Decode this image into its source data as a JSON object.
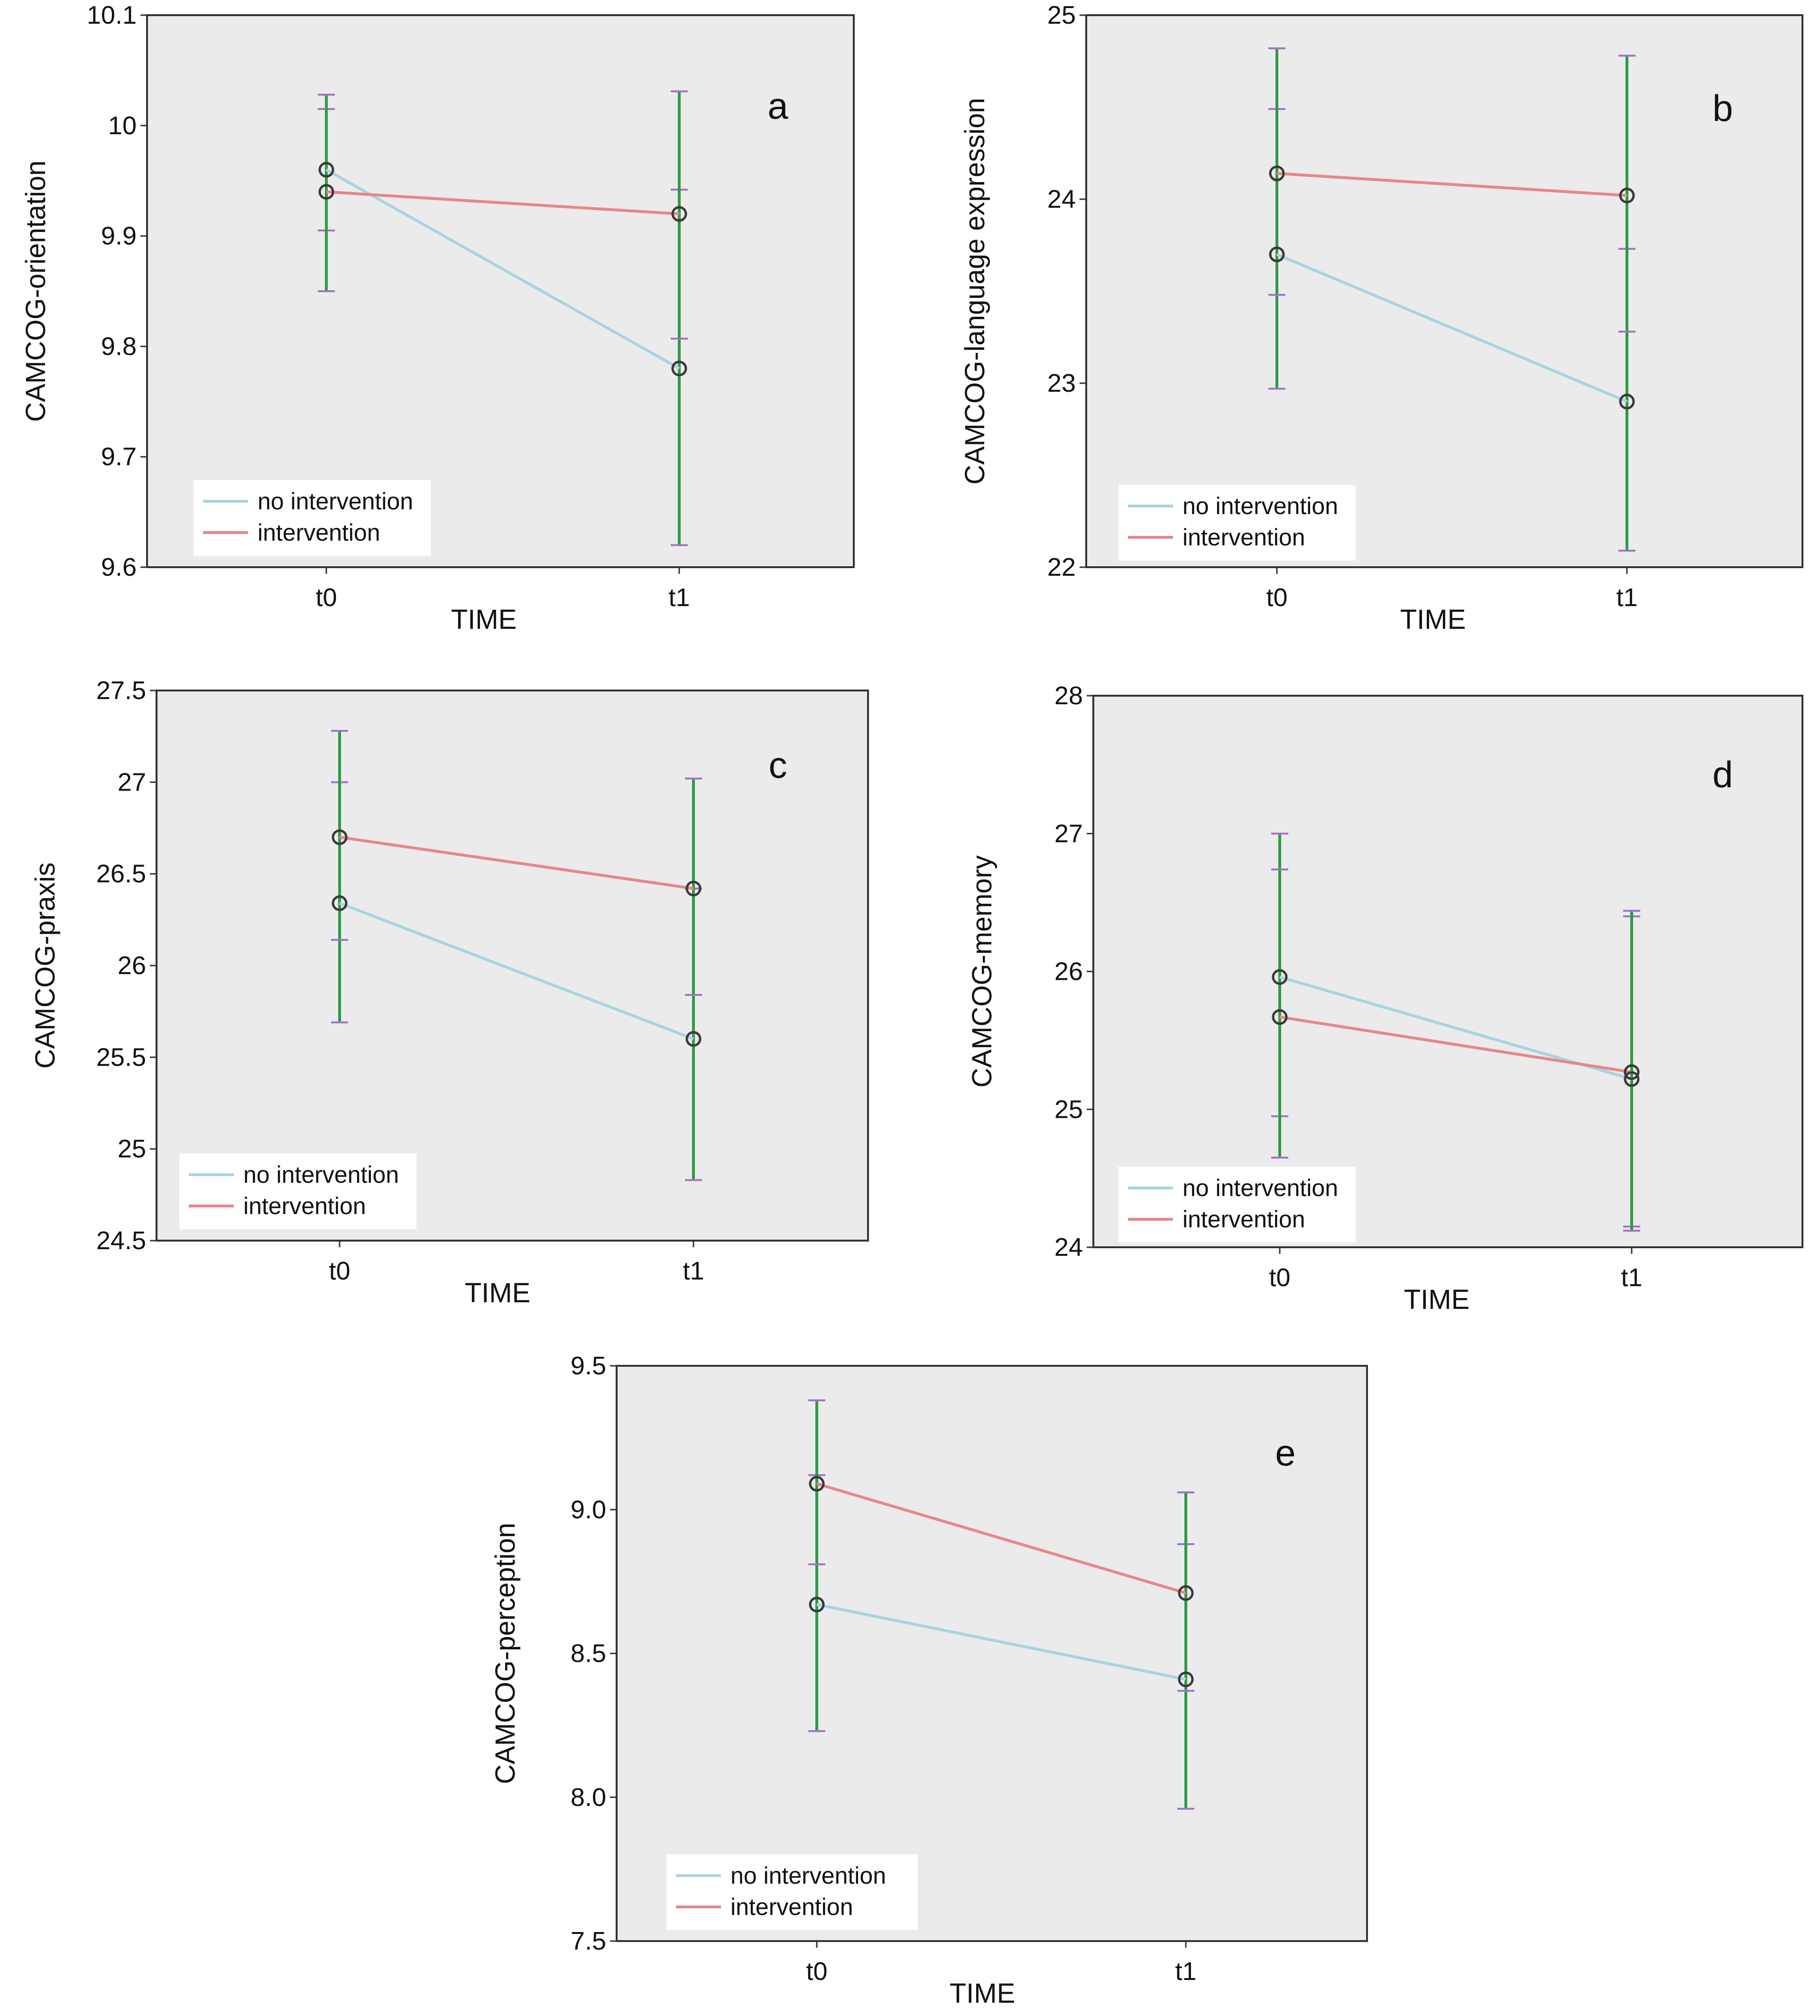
{
  "figure": {
    "colors": {
      "plot_background": "#ebebeb",
      "no_intervention": "#a9d3e2",
      "intervention": "#e8868a",
      "error_bar": "#2e9b44",
      "error_cap": "#a272c2",
      "marker": "#3a3a3a"
    }
  },
  "chart_data": [
    {
      "id": "a",
      "type": "line",
      "panel_label": "a",
      "ylabel": "CAMCOG-orientation",
      "xlabel": "TIME",
      "categories": [
        "t0",
        "t1"
      ],
      "ylim": [
        9.6,
        10.1
      ],
      "yticks": [
        "9.6",
        "9.7",
        "9.8",
        "9.9",
        "10",
        "10.1"
      ],
      "legend": "bottom-left",
      "series": [
        {
          "name": "no intervention",
          "color_key": "no_intervention",
          "values": [
            9.96,
            9.78
          ],
          "ci_low": [
            9.905,
            9.62
          ],
          "ci_high": [
            10.015,
            9.942
          ]
        },
        {
          "name": "intervention",
          "color_key": "intervention",
          "values": [
            9.94,
            9.92
          ],
          "ci_low": [
            9.85,
            9.807
          ],
          "ci_high": [
            10.028,
            10.031
          ]
        }
      ]
    },
    {
      "id": "b",
      "type": "line",
      "panel_label": "b",
      "ylabel": "CAMCOG-language expression",
      "xlabel": "TIME",
      "categories": [
        "t0",
        "t1"
      ],
      "ylim": [
        22,
        25
      ],
      "yticks": [
        "22",
        "23",
        "24",
        "25"
      ],
      "legend": "bottom-left",
      "series": [
        {
          "name": "no intervention",
          "color_key": "no_intervention",
          "values": [
            23.7,
            22.9
          ],
          "ci_low": [
            22.97,
            22.09
          ],
          "ci_high": [
            24.49,
            23.73
          ]
        },
        {
          "name": "intervention",
          "color_key": "intervention",
          "values": [
            24.14,
            24.02
          ],
          "ci_low": [
            23.48,
            23.28
          ],
          "ci_high": [
            24.82,
            24.78
          ]
        }
      ]
    },
    {
      "id": "c",
      "type": "line",
      "panel_label": "c",
      "ylabel": "CAMCOG-praxis",
      "xlabel": "TIME",
      "categories": [
        "t0",
        "t1"
      ],
      "ylim": [
        24.5,
        27.5
      ],
      "yticks": [
        "24.5",
        "25",
        "25.5",
        "26",
        "26.5",
        "27",
        "27.5"
      ],
      "legend": "bottom-left",
      "series": [
        {
          "name": "no intervention",
          "color_key": "no_intervention",
          "values": [
            26.34,
            25.6
          ],
          "ci_low": [
            25.69,
            24.83
          ],
          "ci_high": [
            27.0,
            26.42
          ]
        },
        {
          "name": "intervention",
          "color_key": "intervention",
          "values": [
            26.7,
            26.42
          ],
          "ci_low": [
            26.14,
            25.84
          ],
          "ci_high": [
            27.28,
            27.02
          ]
        }
      ]
    },
    {
      "id": "d",
      "type": "line",
      "panel_label": "d",
      "ylabel": "CAMCOG-memory",
      "xlabel": "TIME",
      "categories": [
        "t0",
        "t1"
      ],
      "ylim": [
        24,
        28
      ],
      "yticks": [
        "24",
        "25",
        "26",
        "27",
        "28"
      ],
      "legend": "bottom-left",
      "series": [
        {
          "name": "no intervention",
          "color_key": "no_intervention",
          "values": [
            25.96,
            25.22
          ],
          "ci_low": [
            24.95,
            24.15
          ],
          "ci_high": [
            27.0,
            26.4
          ]
        },
        {
          "name": "intervention",
          "color_key": "intervention",
          "values": [
            25.67,
            25.27
          ],
          "ci_low": [
            24.65,
            24.12
          ],
          "ci_high": [
            26.74,
            26.44
          ]
        }
      ]
    },
    {
      "id": "e",
      "type": "line",
      "panel_label": "e",
      "ylabel": "CAMCOG-perception",
      "xlabel": "TIME",
      "categories": [
        "t0",
        "t1"
      ],
      "ylim": [
        7.5,
        9.5
      ],
      "yticks": [
        "7.5",
        "8.0",
        "8.5",
        "9.0",
        "9.5"
      ],
      "legend": "bottom-left",
      "series": [
        {
          "name": "no intervention",
          "color_key": "no_intervention",
          "values": [
            8.67,
            8.41
          ],
          "ci_low": [
            8.23,
            7.96
          ],
          "ci_high": [
            9.12,
            8.88
          ]
        },
        {
          "name": "intervention",
          "color_key": "intervention",
          "values": [
            9.09,
            8.71
          ],
          "ci_low": [
            8.81,
            8.37
          ],
          "ci_high": [
            9.38,
            9.06
          ]
        }
      ]
    }
  ]
}
